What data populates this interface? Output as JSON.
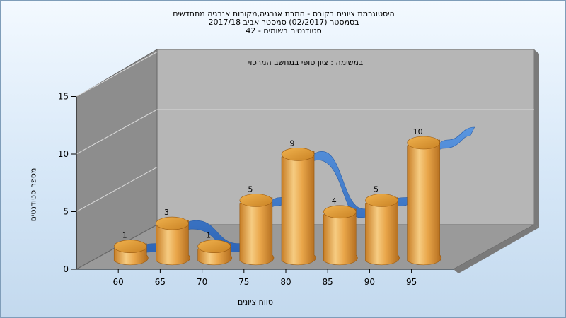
{
  "header": {
    "line1": "היסטוגרמת ציונים בקורס - המרת אנרגיה,מקורות אנרגיה מתחדשים",
    "line2": "בסמסטר  (02/2017)  סמסטר אביב 2017/18",
    "line3": "סטודנטים רשומים - 42"
  },
  "chart_data": {
    "type": "bar",
    "title": "היסטוגרמת ציונים בקורס - המרת אנרגיה,מקורות אנרגיה מתחדשים",
    "annotation": "במשימה : ציון סופי במחשב המרכזי",
    "xlabel": "טווח ציונים",
    "ylabel": "מספר סטודנטים",
    "categories": [
      "60",
      "65",
      "70",
      "75",
      "80",
      "85",
      "90",
      "95"
    ],
    "values": [
      1,
      3,
      1,
      5,
      9,
      4,
      5,
      10
    ],
    "series": [
      {
        "type": "bar",
        "values": [
          1,
          3,
          1,
          5,
          9,
          4,
          5,
          10
        ]
      },
      {
        "type": "ribbon",
        "values": [
          1,
          3,
          1,
          5,
          9,
          4,
          5,
          10
        ]
      }
    ],
    "ylim": [
      0,
      15
    ],
    "yticks": [
      "0",
      "5",
      "10",
      "15"
    ],
    "grid": true,
    "colors": {
      "bar": "#e0a040",
      "ribbon": "#3a78c8",
      "wall": "#b4b4b4",
      "side_wall": "#8c8c8c",
      "floor": "#9a9a9a"
    }
  }
}
